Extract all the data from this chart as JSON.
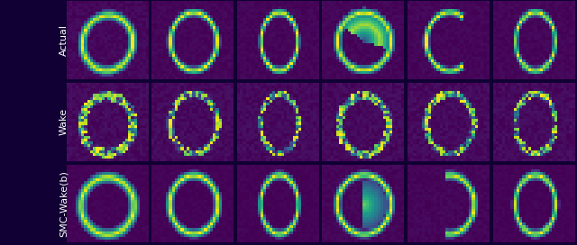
{
  "rows": 3,
  "cols": 6,
  "row_labels": [
    "Actual",
    "Wake",
    "SMC-Wake(b)"
  ],
  "row_label_fontsize": 8,
  "figsize": [
    6.4,
    2.72
  ],
  "dpi": 100,
  "grid_size": 28,
  "colormap": "viridis",
  "bg_color": "#110033"
}
